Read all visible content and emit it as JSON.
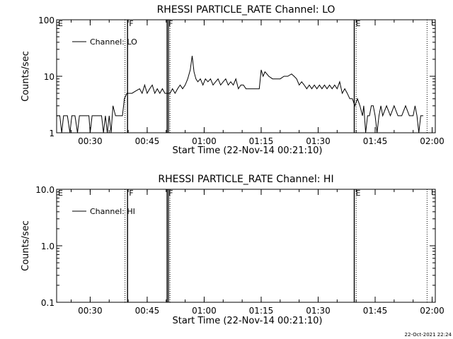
{
  "footer_stamp": "22-Oct-2021 22:24",
  "chart_data": [
    {
      "type": "line",
      "title": "RHESSI PARTICLE_RATE Channel: LO",
      "xlabel": "Start Time (22-Nov-14 00:21:10)",
      "ylabel": "Counts/sec",
      "y_scale": "log",
      "ylim": [
        1,
        100
      ],
      "xlim": [
        "00:21:10",
        "02:00:50"
      ],
      "x_ticks": [
        "00:30",
        "00:45",
        "01:00",
        "01:15",
        "01:30",
        "01:45",
        "02:00"
      ],
      "y_ticks": [
        "1",
        "10",
        "100"
      ],
      "legend": "top-left",
      "series": [
        {
          "name": "Channel: LO",
          "points": [
            [
              "00:21:10",
              2
            ],
            [
              "00:22:00",
              2
            ],
            [
              "00:22:30",
              1
            ],
            [
              "00:23:00",
              2
            ],
            [
              "00:24:00",
              2
            ],
            [
              "00:24:40",
              1
            ],
            [
              "00:25:10",
              2
            ],
            [
              "00:26:00",
              2
            ],
            [
              "00:26:40",
              1
            ],
            [
              "00:27:10",
              2
            ],
            [
              "00:29:40",
              2
            ],
            [
              "00:30:00",
              1
            ],
            [
              "00:30:30",
              2
            ],
            [
              "00:33:00",
              2
            ],
            [
              "00:33:30",
              1
            ],
            [
              "00:34:00",
              2
            ],
            [
              "00:34:30",
              1
            ],
            [
              "00:35:00",
              2
            ],
            [
              "00:35:30",
              1
            ],
            [
              "00:36:00",
              3
            ],
            [
              "00:36:40",
              2
            ],
            [
              "00:37:30",
              2
            ],
            [
              "00:38:30",
              2
            ],
            [
              "00:39:00",
              4
            ],
            [
              "00:39:40",
              5
            ],
            [
              "00:41:00",
              5
            ],
            [
              "00:42:00",
              5.5
            ],
            [
              "00:43:00",
              6
            ],
            [
              "00:43:40",
              5
            ],
            [
              "00:44:20",
              7
            ],
            [
              "00:45:00",
              5
            ],
            [
              "00:45:40",
              6
            ],
            [
              "00:46:20",
              7
            ],
            [
              "00:47:00",
              5
            ],
            [
              "00:47:40",
              6
            ],
            [
              "00:48:20",
              5
            ],
            [
              "00:49:00",
              6
            ],
            [
              "00:49:40",
              5
            ],
            [
              "00:51:00",
              5
            ],
            [
              "00:51:40",
              6
            ],
            [
              "00:52:20",
              5
            ],
            [
              "00:53:00",
              6
            ],
            [
              "00:53:40",
              7
            ],
            [
              "00:54:20",
              6
            ],
            [
              "00:55:00",
              7
            ],
            [
              "00:55:40",
              9
            ],
            [
              "00:56:20",
              13
            ],
            [
              "00:56:50",
              23
            ],
            [
              "00:57:20",
              12
            ],
            [
              "00:57:50",
              9
            ],
            [
              "00:58:20",
              8
            ],
            [
              "00:59:00",
              9
            ],
            [
              "00:59:40",
              7
            ],
            [
              "01:00:20",
              9
            ],
            [
              "01:01:00",
              8
            ],
            [
              "01:01:40",
              9
            ],
            [
              "01:02:20",
              7
            ],
            [
              "01:03:00",
              8
            ],
            [
              "01:03:40",
              9
            ],
            [
              "01:04:20",
              7
            ],
            [
              "01:05:00",
              8
            ],
            [
              "01:05:40",
              9
            ],
            [
              "01:06:20",
              7
            ],
            [
              "01:07:00",
              8
            ],
            [
              "01:07:40",
              7
            ],
            [
              "01:08:20",
              9
            ],
            [
              "01:09:00",
              6
            ],
            [
              "01:09:40",
              7
            ],
            [
              "01:10:20",
              7
            ],
            [
              "01:11:00",
              6
            ],
            [
              "01:12:00",
              6
            ],
            [
              "01:13:00",
              6
            ],
            [
              "01:14:00",
              6
            ],
            [
              "01:14:30",
              6
            ],
            [
              "01:15:00",
              13
            ],
            [
              "01:15:30",
              10
            ],
            [
              "01:16:00",
              12
            ],
            [
              "01:16:30",
              11
            ],
            [
              "01:17:00",
              10
            ],
            [
              "01:18:00",
              9
            ],
            [
              "01:20:00",
              9
            ],
            [
              "01:21:00",
              10
            ],
            [
              "01:22:00",
              10
            ],
            [
              "01:23:00",
              11
            ],
            [
              "01:23:40",
              10
            ],
            [
              "01:24:20",
              9
            ],
            [
              "01:25:00",
              7
            ],
            [
              "01:25:40",
              8
            ],
            [
              "01:26:20",
              7
            ],
            [
              "01:27:00",
              6
            ],
            [
              "01:27:40",
              7
            ],
            [
              "01:28:20",
              6
            ],
            [
              "01:29:00",
              7
            ],
            [
              "01:29:40",
              6
            ],
            [
              "01:30:20",
              7
            ],
            [
              "01:31:00",
              6
            ],
            [
              "01:31:40",
              7
            ],
            [
              "01:32:20",
              6
            ],
            [
              "01:33:00",
              7
            ],
            [
              "01:33:40",
              6
            ],
            [
              "01:34:20",
              7
            ],
            [
              "01:35:00",
              6
            ],
            [
              "01:35:40",
              8
            ],
            [
              "01:36:20",
              5
            ],
            [
              "01:37:00",
              6
            ],
            [
              "01:37:40",
              5
            ],
            [
              "01:38:20",
              4
            ],
            [
              "01:39:00",
              4
            ],
            [
              "01:39:40",
              3
            ],
            [
              "01:40:20",
              4
            ],
            [
              "01:41:00",
              3
            ],
            [
              "01:41:40",
              2
            ],
            [
              "01:42:00",
              3
            ],
            [
              "01:42:30",
              1
            ],
            [
              "01:43:00",
              2
            ],
            [
              "01:43:30",
              2
            ],
            [
              "01:44:00",
              3
            ],
            [
              "01:44:30",
              3
            ],
            [
              "01:45:00",
              2
            ],
            [
              "01:45:30",
              1
            ],
            [
              "01:46:00",
              2
            ],
            [
              "01:46:30",
              3
            ],
            [
              "01:47:00",
              2
            ],
            [
              "01:48:00",
              3
            ],
            [
              "01:49:00",
              2
            ],
            [
              "01:50:00",
              3
            ],
            [
              "01:51:00",
              2
            ],
            [
              "01:52:00",
              2
            ],
            [
              "01:53:00",
              3
            ],
            [
              "01:54:00",
              2
            ],
            [
              "01:55:00",
              2
            ],
            [
              "01:55:30",
              3
            ],
            [
              "01:56:00",
              2
            ],
            [
              "01:56:30",
              1
            ],
            [
              "01:57:00",
              2
            ],
            [
              "01:57:40",
              2
            ]
          ]
        }
      ],
      "flags": [
        {
          "label": "E",
          "time": "00:21:10",
          "style": "dotted"
        },
        {
          "label": "F",
          "time": "00:39:50",
          "style": "solid"
        },
        {
          "label": "F",
          "time": "00:50:15",
          "style": "solid"
        },
        {
          "label": "E",
          "time": "01:39:30",
          "style": "solid"
        }
      ],
      "dotted_markers": [
        "00:39:10",
        "00:51:00",
        "01:40:00",
        "01:58:40"
      ]
    },
    {
      "type": "line",
      "title": "RHESSI PARTICLE_RATE Channel: HI",
      "xlabel": "Start Time (22-Nov-14 00:21:10)",
      "ylabel": "Counts/sec",
      "y_scale": "log",
      "ylim": [
        0.1,
        10
      ],
      "xlim": [
        "00:21:10",
        "02:00:50"
      ],
      "x_ticks": [
        "00:30",
        "00:45",
        "01:00",
        "01:15",
        "01:30",
        "01:45",
        "02:00"
      ],
      "y_ticks": [
        "0.1",
        "1.0",
        "10.0"
      ],
      "legend": "top-left",
      "series": [
        {
          "name": "Channel: HI",
          "points": []
        }
      ],
      "flags": [
        {
          "label": "E",
          "time": "00:21:10",
          "style": "dotted"
        },
        {
          "label": "F",
          "time": "00:39:50",
          "style": "solid"
        },
        {
          "label": "F",
          "time": "00:50:15",
          "style": "solid"
        },
        {
          "label": "E",
          "time": "01:39:30",
          "style": "solid"
        }
      ],
      "dotted_markers": [
        "00:39:10",
        "00:51:00",
        "01:40:00",
        "01:58:40"
      ]
    }
  ]
}
